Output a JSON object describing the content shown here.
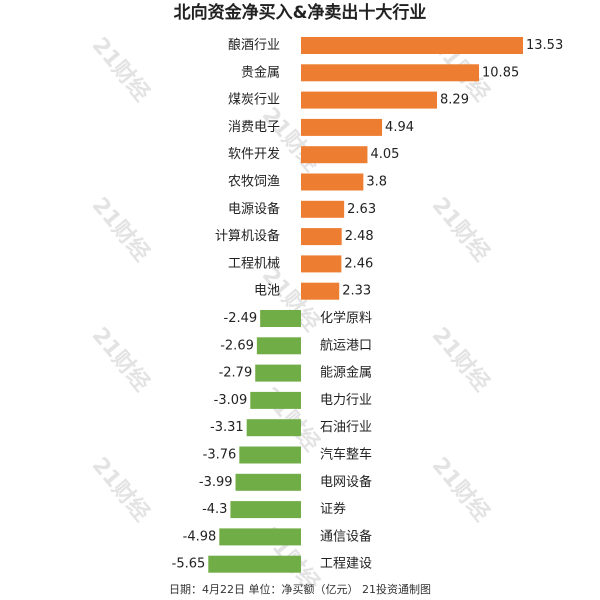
{
  "chart_data": {
    "type": "diverging-bar",
    "title": "北向资金净买入&净卖出十大行业",
    "footer": "日期：4月22日 单位：净买额（亿元） 21投资通制图",
    "watermark": "21财经",
    "categories": [
      "酿酒行业",
      "贵金属",
      "煤炭行业",
      "消费电子",
      "软件开发",
      "农牧饲渔",
      "电源设备",
      "计算机设备",
      "工程机械",
      "电池",
      "化学原料",
      "航运港口",
      "能源金属",
      "电力行业",
      "石油行业",
      "汽车整车",
      "电网设备",
      "证券",
      "通信设备",
      "工程建设"
    ],
    "values": [
      13.53,
      10.85,
      8.29,
      4.94,
      4.05,
      3.8,
      2.63,
      2.48,
      2.46,
      2.33,
      -2.49,
      -2.69,
      -2.79,
      -3.09,
      -3.31,
      -3.76,
      -3.99,
      -4.3,
      -4.98,
      -5.65
    ],
    "positive_color": "#ed7d31",
    "negative_color": "#70ad47"
  }
}
